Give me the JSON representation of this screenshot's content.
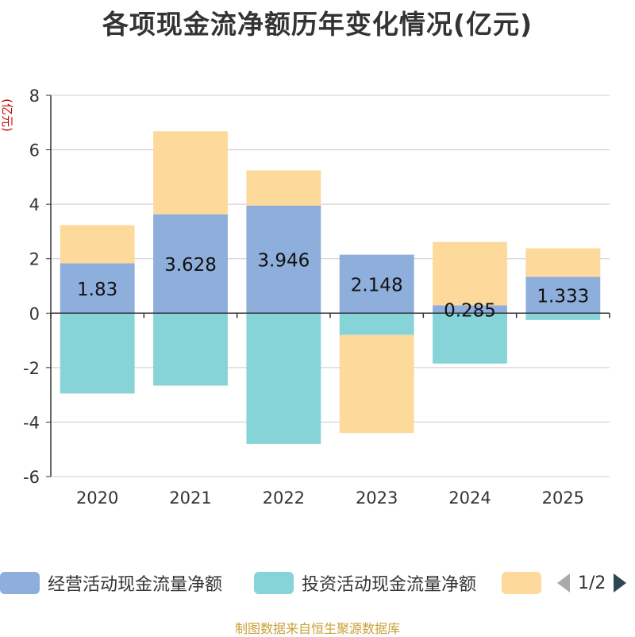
{
  "chart_data": {
    "type": "bar",
    "stacked": true,
    "title": "各项现金流净额历年变化情况(亿元)",
    "ylabel": "(亿元)",
    "xlabel": "",
    "categories": [
      "2020",
      "2021",
      "2022",
      "2023",
      "2024",
      "2025"
    ],
    "series": [
      {
        "name": "经营活动现金流量净额",
        "values": [
          1.83,
          3.628,
          3.946,
          2.148,
          0.285,
          1.333
        ],
        "color": "#8eaedb",
        "data_labels": [
          "1.83",
          "3.628",
          "3.946",
          "2.148",
          "0.285",
          "1.333"
        ]
      },
      {
        "name": "投资活动现金流量净额",
        "values": [
          -2.95,
          -2.66,
          -4.8,
          -0.8,
          -1.85,
          -0.25
        ],
        "color": "#86d4d8"
      },
      {
        "name": "",
        "values": [
          1.4,
          3.05,
          1.3,
          -3.6,
          2.33,
          1.05
        ],
        "color": "#fdd99b"
      }
    ],
    "ylim": [
      -6,
      8
    ],
    "yticks": [
      -6,
      -4,
      -2,
      0,
      2,
      4,
      6,
      8
    ],
    "grid": true,
    "legend_position": "bottom"
  },
  "legend": {
    "items": [
      {
        "label": "经营活动现金流量净额",
        "color": "#8eaedb"
      },
      {
        "label": "投资活动现金流量净额",
        "color": "#86d4d8"
      },
      {
        "label": "",
        "color": "#fdd99b"
      }
    ],
    "page": "1/2",
    "prev_icon": "triangle-left-icon",
    "next_icon": "triangle-right-icon"
  },
  "source": "制图数据来自恒生聚源数据库"
}
